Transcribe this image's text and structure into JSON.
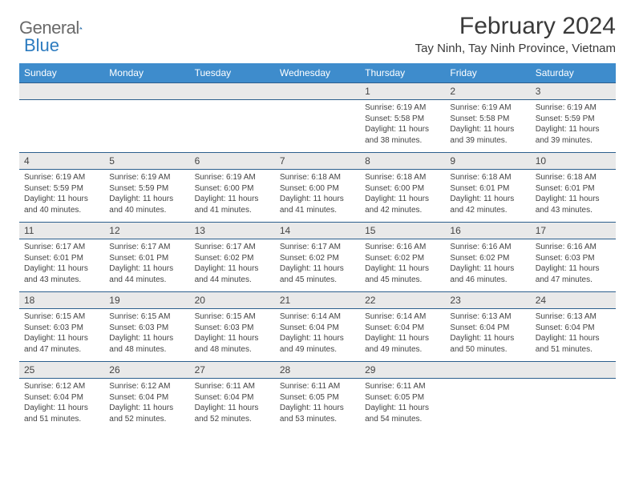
{
  "brand": {
    "name1": "General",
    "name2": "Blue"
  },
  "title": "February 2024",
  "location": "Tay Ninh, Tay Ninh Province, Vietnam",
  "colors": {
    "header_bg": "#3e8ccc",
    "header_text": "#ffffff",
    "row_divider": "#2c5f8d",
    "daynum_bg": "#e9e9e9",
    "text": "#444444",
    "logo_gray": "#6a6a6a",
    "logo_blue": "#2c7bbf"
  },
  "weekdays": [
    "Sunday",
    "Monday",
    "Tuesday",
    "Wednesday",
    "Thursday",
    "Friday",
    "Saturday"
  ],
  "weeks": [
    [
      null,
      null,
      null,
      null,
      {
        "n": "1",
        "sr": "Sunrise: 6:19 AM",
        "ss": "Sunset: 5:58 PM",
        "dl": "Daylight: 11 hours and 38 minutes."
      },
      {
        "n": "2",
        "sr": "Sunrise: 6:19 AM",
        "ss": "Sunset: 5:58 PM",
        "dl": "Daylight: 11 hours and 39 minutes."
      },
      {
        "n": "3",
        "sr": "Sunrise: 6:19 AM",
        "ss": "Sunset: 5:59 PM",
        "dl": "Daylight: 11 hours and 39 minutes."
      }
    ],
    [
      {
        "n": "4",
        "sr": "Sunrise: 6:19 AM",
        "ss": "Sunset: 5:59 PM",
        "dl": "Daylight: 11 hours and 40 minutes."
      },
      {
        "n": "5",
        "sr": "Sunrise: 6:19 AM",
        "ss": "Sunset: 5:59 PM",
        "dl": "Daylight: 11 hours and 40 minutes."
      },
      {
        "n": "6",
        "sr": "Sunrise: 6:19 AM",
        "ss": "Sunset: 6:00 PM",
        "dl": "Daylight: 11 hours and 41 minutes."
      },
      {
        "n": "7",
        "sr": "Sunrise: 6:18 AM",
        "ss": "Sunset: 6:00 PM",
        "dl": "Daylight: 11 hours and 41 minutes."
      },
      {
        "n": "8",
        "sr": "Sunrise: 6:18 AM",
        "ss": "Sunset: 6:00 PM",
        "dl": "Daylight: 11 hours and 42 minutes."
      },
      {
        "n": "9",
        "sr": "Sunrise: 6:18 AM",
        "ss": "Sunset: 6:01 PM",
        "dl": "Daylight: 11 hours and 42 minutes."
      },
      {
        "n": "10",
        "sr": "Sunrise: 6:18 AM",
        "ss": "Sunset: 6:01 PM",
        "dl": "Daylight: 11 hours and 43 minutes."
      }
    ],
    [
      {
        "n": "11",
        "sr": "Sunrise: 6:17 AM",
        "ss": "Sunset: 6:01 PM",
        "dl": "Daylight: 11 hours and 43 minutes."
      },
      {
        "n": "12",
        "sr": "Sunrise: 6:17 AM",
        "ss": "Sunset: 6:01 PM",
        "dl": "Daylight: 11 hours and 44 minutes."
      },
      {
        "n": "13",
        "sr": "Sunrise: 6:17 AM",
        "ss": "Sunset: 6:02 PM",
        "dl": "Daylight: 11 hours and 44 minutes."
      },
      {
        "n": "14",
        "sr": "Sunrise: 6:17 AM",
        "ss": "Sunset: 6:02 PM",
        "dl": "Daylight: 11 hours and 45 minutes."
      },
      {
        "n": "15",
        "sr": "Sunrise: 6:16 AM",
        "ss": "Sunset: 6:02 PM",
        "dl": "Daylight: 11 hours and 45 minutes."
      },
      {
        "n": "16",
        "sr": "Sunrise: 6:16 AM",
        "ss": "Sunset: 6:02 PM",
        "dl": "Daylight: 11 hours and 46 minutes."
      },
      {
        "n": "17",
        "sr": "Sunrise: 6:16 AM",
        "ss": "Sunset: 6:03 PM",
        "dl": "Daylight: 11 hours and 47 minutes."
      }
    ],
    [
      {
        "n": "18",
        "sr": "Sunrise: 6:15 AM",
        "ss": "Sunset: 6:03 PM",
        "dl": "Daylight: 11 hours and 47 minutes."
      },
      {
        "n": "19",
        "sr": "Sunrise: 6:15 AM",
        "ss": "Sunset: 6:03 PM",
        "dl": "Daylight: 11 hours and 48 minutes."
      },
      {
        "n": "20",
        "sr": "Sunrise: 6:15 AM",
        "ss": "Sunset: 6:03 PM",
        "dl": "Daylight: 11 hours and 48 minutes."
      },
      {
        "n": "21",
        "sr": "Sunrise: 6:14 AM",
        "ss": "Sunset: 6:04 PM",
        "dl": "Daylight: 11 hours and 49 minutes."
      },
      {
        "n": "22",
        "sr": "Sunrise: 6:14 AM",
        "ss": "Sunset: 6:04 PM",
        "dl": "Daylight: 11 hours and 49 minutes."
      },
      {
        "n": "23",
        "sr": "Sunrise: 6:13 AM",
        "ss": "Sunset: 6:04 PM",
        "dl": "Daylight: 11 hours and 50 minutes."
      },
      {
        "n": "24",
        "sr": "Sunrise: 6:13 AM",
        "ss": "Sunset: 6:04 PM",
        "dl": "Daylight: 11 hours and 51 minutes."
      }
    ],
    [
      {
        "n": "25",
        "sr": "Sunrise: 6:12 AM",
        "ss": "Sunset: 6:04 PM",
        "dl": "Daylight: 11 hours and 51 minutes."
      },
      {
        "n": "26",
        "sr": "Sunrise: 6:12 AM",
        "ss": "Sunset: 6:04 PM",
        "dl": "Daylight: 11 hours and 52 minutes."
      },
      {
        "n": "27",
        "sr": "Sunrise: 6:11 AM",
        "ss": "Sunset: 6:04 PM",
        "dl": "Daylight: 11 hours and 52 minutes."
      },
      {
        "n": "28",
        "sr": "Sunrise: 6:11 AM",
        "ss": "Sunset: 6:05 PM",
        "dl": "Daylight: 11 hours and 53 minutes."
      },
      {
        "n": "29",
        "sr": "Sunrise: 6:11 AM",
        "ss": "Sunset: 6:05 PM",
        "dl": "Daylight: 11 hours and 54 minutes."
      },
      null,
      null
    ]
  ]
}
